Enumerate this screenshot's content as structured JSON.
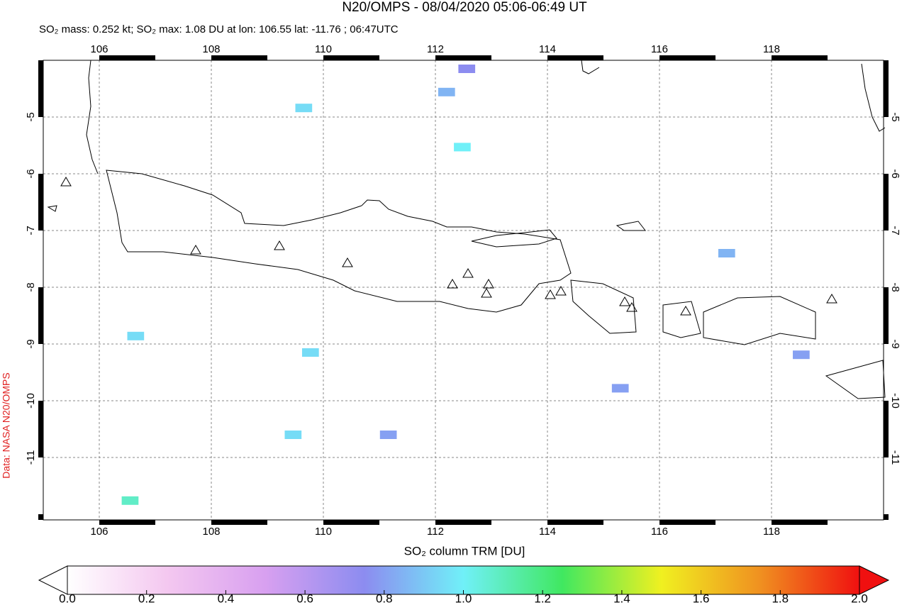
{
  "chart_data": {
    "type": "map",
    "title": "N20/OMPS - 08/04/2020 05:06-06:49 UT",
    "subtitle": "SO₂ mass: 0.252 kt; SO₂ max: 1.08 DU at lon: 106.55 lat: -11.76 ; 06:47UTC",
    "source_label": "Data: NASA N20/OMPS",
    "xlim": [
      105,
      120
    ],
    "ylim": [
      -12.1,
      -4
    ],
    "xticks": [
      106,
      108,
      110,
      112,
      114,
      116,
      118
    ],
    "yticks": [
      -5,
      -6,
      -7,
      -8,
      -9,
      -10,
      -11
    ],
    "grid": true,
    "pixels": [
      {
        "lon": 106.55,
        "lat": -11.76,
        "value": 1.08
      },
      {
        "lon": 112.48,
        "lat": -5.53,
        "value": 1.0
      },
      {
        "lon": 109.77,
        "lat": -9.15,
        "value": 0.95
      },
      {
        "lon": 109.46,
        "lat": -10.6,
        "value": 0.95
      },
      {
        "lon": 109.65,
        "lat": -4.84,
        "value": 0.95
      },
      {
        "lon": 106.65,
        "lat": -8.86,
        "value": 0.95
      },
      {
        "lon": 112.56,
        "lat": -4.15,
        "value": 0.75
      },
      {
        "lon": 112.2,
        "lat": -4.56,
        "value": 0.85
      },
      {
        "lon": 115.3,
        "lat": -9.78,
        "value": 0.8
      },
      {
        "lon": 117.2,
        "lat": -7.4,
        "value": 0.85
      },
      {
        "lon": 111.16,
        "lat": -10.6,
        "value": 0.8
      },
      {
        "lon": 118.53,
        "lat": -9.19,
        "value": 0.8
      }
    ],
    "colorbar": {
      "label": "SO₂ column TRM [DU]",
      "lim": [
        0,
        2
      ],
      "ticks": [
        {
          "value": 0,
          "label": "0.0"
        },
        {
          "value": 0.2,
          "label": "0.2"
        },
        {
          "value": 0.4,
          "label": "0.4"
        },
        {
          "value": 0.6,
          "label": "0.6"
        },
        {
          "value": 0.8,
          "label": "0.8"
        },
        {
          "value": 1,
          "label": "1.0"
        },
        {
          "value": 1.2,
          "label": "1.2"
        },
        {
          "value": 1.4,
          "label": "1.4"
        },
        {
          "value": 1.6,
          "label": "1.6"
        },
        {
          "value": 1.8,
          "label": "1.8"
        },
        {
          "value": 2,
          "label": "2.0"
        }
      ],
      "colormap": [
        "#ffffff",
        "#f4c8f0",
        "#d8a0f0",
        "#8c8cf0",
        "#70f0f8",
        "#40e860",
        "#f0f020",
        "#f09020",
        "#f01010"
      ]
    }
  }
}
